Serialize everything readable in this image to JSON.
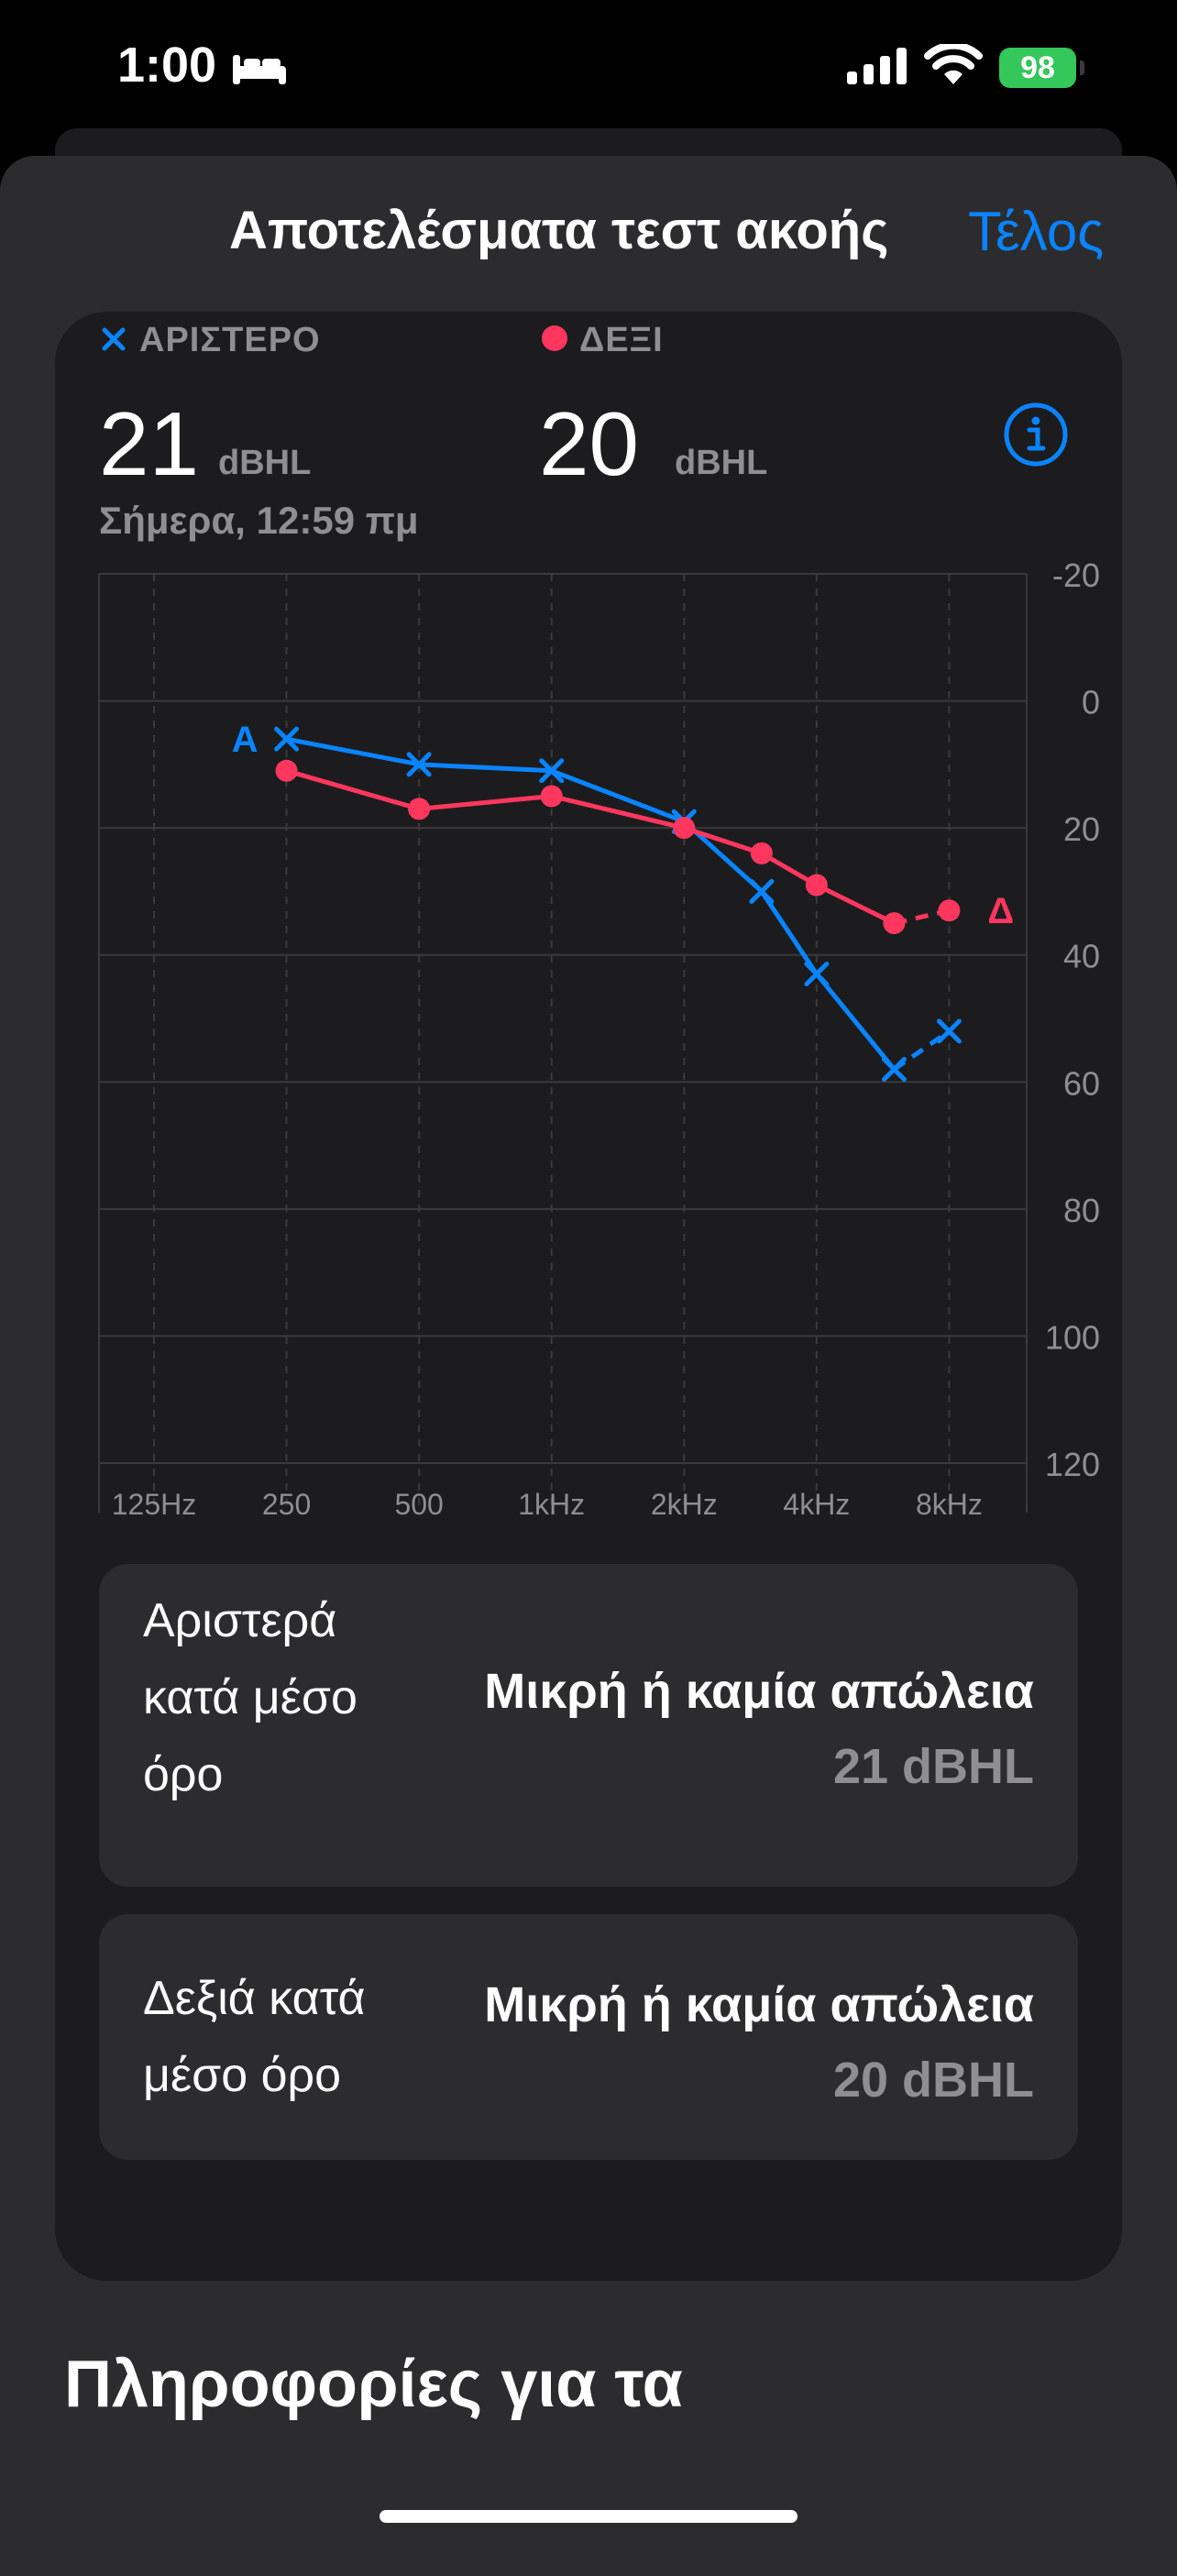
{
  "status_bar": {
    "time": "1:00",
    "battery_percent": "98"
  },
  "sheet": {
    "title": "Αποτελέσματα τεστ ακοής",
    "done_label": "Τέλος"
  },
  "summary": {
    "left_label": "ΑΡΙΣΤΕΡΟ",
    "left_value": "21",
    "left_unit": "dBHL",
    "right_label": "ΔΕΞΙ",
    "right_value": "20",
    "right_unit": "dBHL",
    "date": "Σήμερα, 12:59 πμ"
  },
  "chart_data": {
    "type": "line",
    "x": [
      "125Hz",
      "250",
      "500",
      "1kHz",
      "2kHz",
      "4kHz",
      "8kHz"
    ],
    "ylim": [
      -20,
      120
    ],
    "y_ticks": [
      "-20",
      "0",
      "20",
      "40",
      "60",
      "80",
      "100",
      "120"
    ],
    "y_inverted": true,
    "grid": true,
    "series": [
      {
        "name": "ΑΡΙΣΤΕΡΟ",
        "end_label": "Α",
        "color": "#0a84ff",
        "marker": "x",
        "points": [
          [
            250,
            6
          ],
          [
            500,
            10
          ],
          [
            1000,
            11
          ],
          [
            2000,
            19
          ],
          [
            3000,
            30
          ],
          [
            4000,
            43
          ],
          [
            6000,
            58
          ],
          [
            8000,
            52
          ]
        ]
      },
      {
        "name": "ΔΕΞΙ",
        "end_label": "Δ",
        "color": "#ff375f",
        "marker": "circle",
        "points": [
          [
            250,
            11
          ],
          [
            500,
            17
          ],
          [
            1000,
            15
          ],
          [
            2000,
            20
          ],
          [
            3000,
            24
          ],
          [
            4000,
            29
          ],
          [
            6000,
            35
          ],
          [
            8000,
            33
          ]
        ]
      }
    ]
  },
  "averages": [
    {
      "label": "Αριστερά κατά μέσο όρο",
      "label_lines": [
        "Αριστερά",
        "κατά μέσο",
        "όρο"
      ],
      "status": "Μικρή ή καμία απώλεια",
      "value": "21 dBHL"
    },
    {
      "label": "Δεξιά κατά μέσο όρο",
      "label_lines": [
        "Δεξιά κατά",
        "μέσο όρο"
      ],
      "status": "Μικρή ή καμία απώλεια",
      "value": "20 dBHL"
    }
  ],
  "next_section_title": "Πληροφορίες για τα",
  "colors": {
    "accent": "#0a84ff",
    "left_ear": "#0a84ff",
    "right_ear": "#ff375f",
    "battery": "#34c759"
  }
}
